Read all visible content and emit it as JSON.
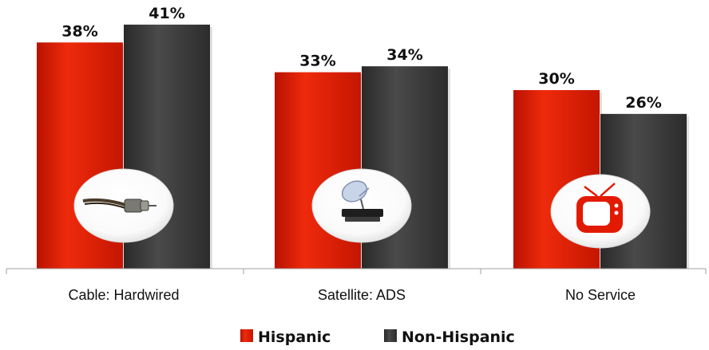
{
  "chart_data": {
    "type": "bar",
    "categories": [
      "Cable: Hardwired",
      "Satellite: ADS",
      "No Service"
    ],
    "series": [
      {
        "name": "Hispanic",
        "values": [
          38,
          33,
          30
        ],
        "labels": [
          "38%",
          "33%",
          "30%"
        ],
        "color": "#e21a00"
      },
      {
        "name": "Non-Hispanic",
        "values": [
          41,
          34,
          26
        ],
        "labels": [
          "41%",
          "34%",
          "26%"
        ],
        "color": "#3a3a3a"
      }
    ],
    "ylim": [
      0,
      45
    ],
    "legend": "bottom-center",
    "grid": false,
    "icons": [
      "coax-cable-icon",
      "satellite-dish-icon",
      "tv-icon"
    ]
  }
}
